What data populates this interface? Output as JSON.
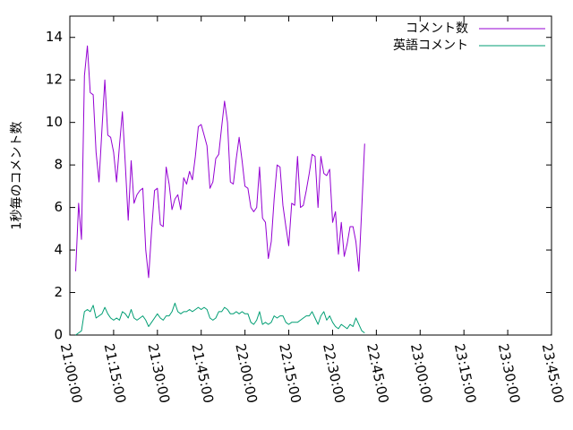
{
  "chart_data": {
    "type": "line",
    "ylabel": "1秒毎のコメント数",
    "xlabel": "",
    "ylim": [
      0,
      15
    ],
    "xlim": [
      "21:00:00",
      "23:45:00"
    ],
    "x_ticks": [
      "21:00:00",
      "21:15:00",
      "21:30:00",
      "21:45:00",
      "22:00:00",
      "22:15:00",
      "22:30:00",
      "22:45:00",
      "23:00:00",
      "23:15:00",
      "23:30:00",
      "23:45:00"
    ],
    "y_ticks": [
      "0",
      "2",
      "4",
      "6",
      "8",
      "10",
      "12",
      "14"
    ],
    "grid": false,
    "legend_position": "top-right",
    "x_start": "21:02:00",
    "x_step_seconds": 60,
    "series": [
      {
        "name": "コメント数",
        "color": "#9400d3",
        "values": [
          3.0,
          6.2,
          4.5,
          12.2,
          13.6,
          11.4,
          11.3,
          8.6,
          7.2,
          9.7,
          12.0,
          9.4,
          9.3,
          8.6,
          7.2,
          8.9,
          10.5,
          8.0,
          5.4,
          8.2,
          6.2,
          6.6,
          6.8,
          6.9,
          4.0,
          2.7,
          4.9,
          6.8,
          6.9,
          5.2,
          5.1,
          7.9,
          7.1,
          5.9,
          6.4,
          6.6,
          5.9,
          7.4,
          7.1,
          7.7,
          7.3,
          8.4,
          9.8,
          9.9,
          9.4,
          8.9,
          6.9,
          7.2,
          8.3,
          8.5,
          9.8,
          11.0,
          10.0,
          7.2,
          7.1,
          8.3,
          9.3,
          8.2,
          7.0,
          6.9,
          6.0,
          5.8,
          6.0,
          7.9,
          5.5,
          5.3,
          3.6,
          4.4,
          6.4,
          8.0,
          7.9,
          6.1,
          5.1,
          4.2,
          6.2,
          6.1,
          8.4,
          6.0,
          6.1,
          6.8,
          7.6,
          8.5,
          8.4,
          6.0,
          8.4,
          7.6,
          7.5,
          7.8,
          5.3,
          5.8,
          3.8,
          5.3,
          3.7,
          4.3,
          5.1,
          5.1,
          4.4,
          3.0,
          6.0,
          9.0
        ]
      },
      {
        "name": "英語コメント",
        "color": "#009e73",
        "values": [
          0.0,
          0.1,
          0.2,
          1.1,
          1.2,
          1.1,
          1.4,
          0.8,
          0.9,
          1.0,
          1.3,
          1.0,
          0.8,
          0.7,
          0.8,
          0.7,
          1.1,
          1.0,
          0.8,
          1.2,
          0.8,
          0.7,
          0.8,
          0.9,
          0.7,
          0.4,
          0.6,
          0.8,
          1.0,
          0.8,
          0.7,
          0.9,
          0.9,
          1.1,
          1.5,
          1.1,
          1.0,
          1.1,
          1.1,
          1.2,
          1.1,
          1.2,
          1.3,
          1.2,
          1.3,
          1.2,
          0.8,
          0.7,
          0.8,
          1.1,
          1.1,
          1.3,
          1.2,
          1.0,
          1.0,
          1.1,
          1.0,
          1.1,
          1.0,
          1.0,
          0.6,
          0.5,
          0.7,
          1.1,
          0.5,
          0.6,
          0.5,
          0.6,
          0.9,
          0.8,
          0.9,
          0.9,
          0.6,
          0.5,
          0.6,
          0.6,
          0.6,
          0.7,
          0.8,
          0.9,
          0.9,
          1.1,
          0.8,
          0.5,
          0.9,
          1.1,
          0.7,
          0.9,
          0.6,
          0.4,
          0.3,
          0.5,
          0.4,
          0.3,
          0.5,
          0.4,
          0.8,
          0.5,
          0.2,
          0.1
        ]
      }
    ]
  }
}
